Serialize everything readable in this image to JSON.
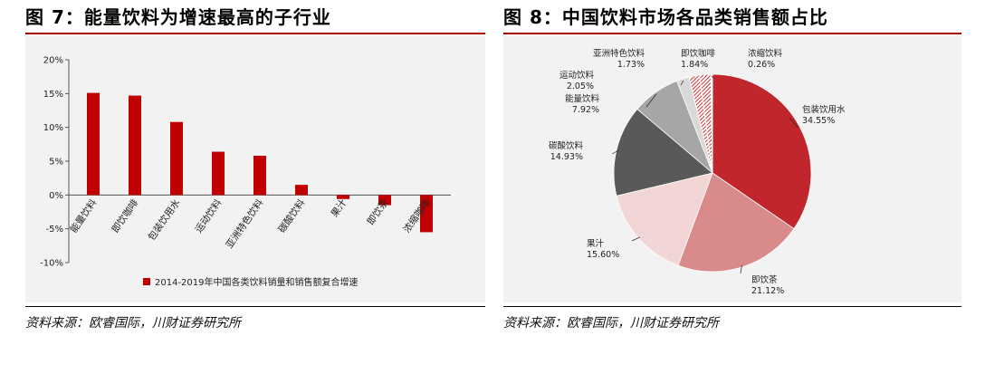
{
  "left": {
    "title_fig": "图 7：",
    "title_text": "能量饮料为增速最高的子行业",
    "source": "资料来源：欧睿国际，川财证券研究所"
  },
  "right": {
    "title_fig": "图 8：",
    "title_text": "中国饮料市场各品类销售额占比",
    "source": "资料来源：欧睿国际，川财证券研究所"
  },
  "colors": {
    "bar": "#c00000",
    "title_rule": "#a80000",
    "panel_bg": "#f2f2f2",
    "slices": [
      "#c0262b",
      "#d98a8a",
      "#f2d6d6",
      "#595959",
      "#a6a6a6",
      "#d9d9d9",
      "#cccccc",
      "#e8a0a0",
      "#ffffff"
    ]
  },
  "chart_data": [
    {
      "type": "bar",
      "categories": [
        "能量饮料",
        "即饮咖啡",
        "包装饮用水",
        "运动饮料",
        "亚洲特色饮料",
        "碳酸饮料",
        "果汁",
        "即饮茶",
        "浓缩咖啡"
      ],
      "series": [
        {
          "name": "2014-2019年中国各类饮料销量和销售额复合增速",
          "values": [
            15.1,
            14.7,
            10.8,
            6.4,
            5.8,
            1.5,
            -0.6,
            -1.5,
            -5.5
          ]
        }
      ],
      "yticks": [
        "20%",
        "15%",
        "10%",
        "5%",
        "0%",
        "-5%",
        "-10%"
      ],
      "ylim": [
        -10,
        20
      ],
      "legend_position": "bottom"
    },
    {
      "type": "pie",
      "slices": [
        {
          "name": "包装饮用水",
          "label": "34.55%",
          "value": 34.55
        },
        {
          "name": "即饮茶",
          "label": "21.12%",
          "value": 21.12
        },
        {
          "name": "果汁",
          "label": "15.60%",
          "value": 15.6
        },
        {
          "name": "碳酸饮料",
          "label": "14.93%",
          "value": 14.93
        },
        {
          "name": "能量饮料",
          "label": "7.92%",
          "value": 7.92
        },
        {
          "name": "运动饮料",
          "label": "2.05%",
          "value": 2.05
        },
        {
          "name": "亚洲特色饮料",
          "label": "1.73%",
          "value": 1.73
        },
        {
          "name": "即饮咖啡",
          "label": "1.84%",
          "value": 1.84
        },
        {
          "name": "浓缩饮料",
          "label": "0.26%",
          "value": 0.26
        }
      ]
    }
  ]
}
